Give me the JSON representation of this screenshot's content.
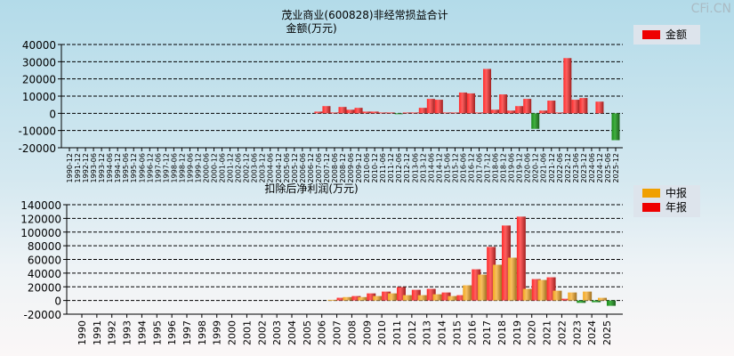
{
  "watermark": "CFi.CN",
  "chart_data": [
    {
      "type": "bar",
      "title": "茂业商业(600828)非经常损益合计",
      "ylabel": "金额(万元)",
      "legend": [
        "金额"
      ],
      "legend_position": "top-right",
      "ylim": [
        -20000,
        40000
      ],
      "yticks": [
        40000,
        30000,
        20000,
        10000,
        0,
        -10000,
        -20000
      ],
      "grid": true,
      "colors": {
        "positive": "#ee2222",
        "negative": "#2a8a2a"
      },
      "categories": [
        "1990-12",
        "1991-12",
        "1992-12",
        "1993-06",
        "1993-12",
        "1994-06",
        "1994-12",
        "1995-06",
        "1995-12",
        "1996-06",
        "1996-12",
        "1997-06",
        "1997-12",
        "1998-06",
        "1998-12",
        "1999-06",
        "1999-12",
        "2000-06",
        "2000-12",
        "2001-06",
        "2001-12",
        "2002-06",
        "2002-12",
        "2003-06",
        "2003-12",
        "2004-06",
        "2004-12",
        "2005-06",
        "2005-12",
        "2006-06",
        "2006-12",
        "2007-06",
        "2007-12",
        "2008-06",
        "2008-12",
        "2009-06",
        "2009-12",
        "2010-06",
        "2010-12",
        "2011-06",
        "2011-12",
        "2012-06",
        "2012-12",
        "2013-06",
        "2013-12",
        "2014-06",
        "2014-12",
        "2015-06",
        "2015-12",
        "2016-06",
        "2016-12",
        "2017-06",
        "2017-12",
        "2018-06",
        "2018-12",
        "2019-06",
        "2019-12",
        "2020-06",
        "2020-12",
        "2021-06",
        "2021-12",
        "2022-06",
        "2022-12",
        "2023-06",
        "2023-12",
        "2024-06",
        "2024-12",
        "2025-06",
        "2025-12"
      ],
      "values": [
        null,
        null,
        null,
        null,
        null,
        null,
        null,
        null,
        null,
        null,
        null,
        null,
        null,
        null,
        null,
        null,
        null,
        null,
        null,
        null,
        null,
        null,
        null,
        null,
        null,
        null,
        null,
        null,
        null,
        null,
        null,
        1000,
        4200,
        500,
        3700,
        2100,
        3200,
        1000,
        1000,
        500,
        500,
        -500,
        500,
        500,
        3200,
        8400,
        7900,
        500,
        500,
        12100,
        11600,
        500,
        25800,
        2100,
        11000,
        1600,
        4200,
        8400,
        -9000,
        1600,
        7400,
        500,
        32100,
        7900,
        8900,
        null,
        6800,
        null,
        -15600
      ]
    },
    {
      "type": "bar",
      "title": "扣除后净利润(万元)",
      "legend": [
        "中报",
        "年报"
      ],
      "legend_position": "top-right",
      "ylim": [
        -20000,
        140000
      ],
      "yticks": [
        140000,
        120000,
        100000,
        80000,
        60000,
        40000,
        20000,
        0,
        -20000
      ],
      "grid": true,
      "colors": {
        "中报": "#f0a020",
        "年报": "#ee2222",
        "negative": "#2a8a2a"
      },
      "categories": [
        "1990",
        "1991",
        "1992",
        "1993",
        "1994",
        "1995",
        "1996",
        "1997",
        "1998",
        "1999",
        "2000",
        "2001",
        "2002",
        "2003",
        "2004",
        "2005",
        "2006",
        "2007",
        "2008",
        "2009",
        "2010",
        "2011",
        "2012",
        "2013",
        "2014",
        "2015",
        "2016",
        "2017",
        "2018",
        "2019",
        "2020",
        "2021",
        "2022",
        "2023",
        "2024",
        "2025"
      ],
      "series": [
        {
          "name": "中报",
          "values": [
            null,
            null,
            null,
            null,
            null,
            null,
            null,
            null,
            null,
            null,
            null,
            null,
            null,
            null,
            null,
            null,
            null,
            1000,
            5000,
            5000,
            6500,
            10400,
            7800,
            7800,
            9100,
            6500,
            22200,
            37800,
            52200,
            62600,
            17000,
            30000,
            14300,
            11700,
            13000,
            3900
          ]
        },
        {
          "name": "年报",
          "values": [
            null,
            null,
            null,
            null,
            null,
            null,
            null,
            null,
            null,
            null,
            null,
            null,
            null,
            null,
            null,
            null,
            null,
            4000,
            6500,
            10400,
            13000,
            19600,
            15600,
            17000,
            11700,
            7800,
            45600,
            78300,
            109600,
            122600,
            31300,
            33900,
            2600,
            -3500,
            -2600,
            -7800
          ]
        }
      ]
    }
  ]
}
